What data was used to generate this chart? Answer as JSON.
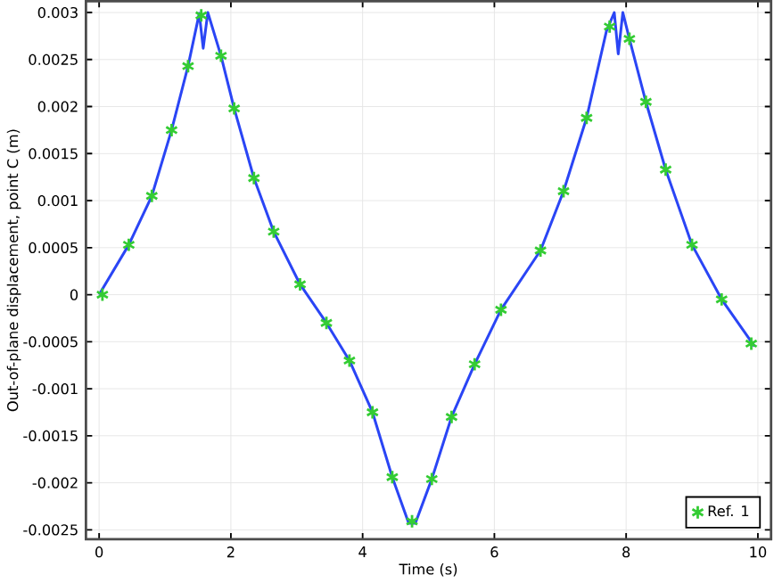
{
  "chart_data": {
    "type": "line",
    "xlabel": "Time (s)",
    "ylabel": "Out-of-plane displacement, point C (m)",
    "xlim": [
      -0.2,
      10.2
    ],
    "ylim": [
      -0.0026,
      0.00312
    ],
    "xticks": [
      0,
      2,
      4,
      6,
      8,
      10
    ],
    "yticks": [
      -0.0025,
      -0.002,
      -0.0015,
      -0.001,
      -0.0005,
      0,
      0.0005,
      0.001,
      0.0015,
      0.002,
      0.0025,
      0.003
    ],
    "grid": true,
    "legend": "bottom right",
    "series": [
      {
        "color": "#2a45f5",
        "marker": "none",
        "line_style": "solid",
        "x": [
          0,
          0.45,
          0.8,
          1.1,
          1.35,
          1.52,
          1.58,
          1.65,
          1.85,
          2.05,
          2.35,
          2.65,
          3.05,
          3.45,
          3.8,
          4.15,
          4.45,
          4.7,
          4.8,
          5.05,
          5.35,
          5.7,
          6.1,
          6.7,
          7.05,
          7.4,
          7.7,
          7.82,
          7.88,
          7.95,
          8.05,
          8.3,
          8.6,
          9.0,
          9.45,
          9.95
        ],
        "values": [
          0,
          0.00053,
          0.00105,
          0.00175,
          0.00243,
          0.00299,
          0.00262,
          0.003,
          0.00254,
          0.00198,
          0.00124,
          0.00067,
          0.00011,
          -0.0003,
          -0.0007,
          -0.00125,
          -0.00194,
          -0.00243,
          -0.00243,
          -0.00196,
          -0.0013,
          -0.00074,
          -0.00016,
          0.00047,
          0.0011,
          0.00188,
          0.0028,
          0.003,
          0.00256,
          0.003,
          0.00272,
          0.00205,
          0.00133,
          0.00053,
          -5e-05,
          -0.00055
        ]
      },
      {
        "type": "scatter",
        "name": "Ref. 1",
        "color": "#33cc33",
        "marker": "cross",
        "x": [
          0.05,
          0.45,
          0.8,
          1.1,
          1.35,
          1.55,
          1.85,
          2.05,
          2.35,
          2.65,
          3.05,
          3.45,
          3.8,
          4.15,
          4.45,
          4.75,
          5.05,
          5.35,
          5.7,
          6.1,
          6.7,
          7.05,
          7.4,
          7.75,
          8.05,
          8.3,
          8.6,
          9.0,
          9.45,
          9.9
        ],
        "values": [
          0,
          0.00053,
          0.00105,
          0.00175,
          0.00243,
          0.00297,
          0.00254,
          0.00198,
          0.00124,
          0.00067,
          0.00011,
          -0.0003,
          -0.0007,
          -0.00125,
          -0.00194,
          -0.00241,
          -0.00196,
          -0.0013,
          -0.00074,
          -0.00016,
          0.00047,
          0.0011,
          0.00188,
          0.00285,
          0.00272,
          0.00205,
          0.00133,
          0.00053,
          -5e-05,
          -0.00052
        ]
      }
    ]
  }
}
